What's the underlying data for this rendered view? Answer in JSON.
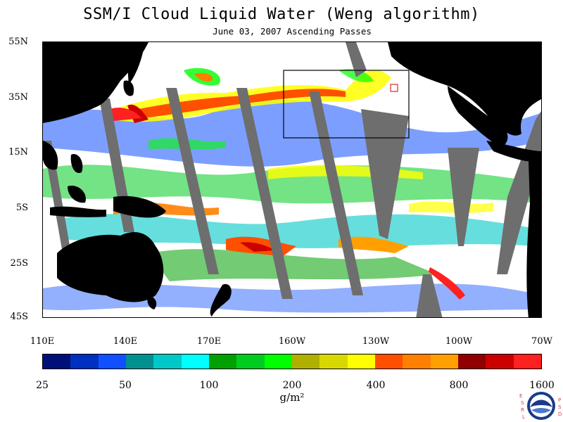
{
  "title": "SSM/I Cloud Liquid Water (Weng algorithm)",
  "subtitle": "June 03, 2007  Ascending Passes",
  "lat_labels": [
    "55N",
    "35N",
    "15N",
    "5S",
    "25S",
    "45S"
  ],
  "lon_labels": [
    "110E",
    "140E",
    "170E",
    "160W",
    "130W",
    "100W",
    "70W"
  ],
  "colorbar": {
    "colors": [
      "#00107a",
      "#0030c0",
      "#1050ff",
      "#009090",
      "#00c8c8",
      "#00ffff",
      "#00a000",
      "#00cc20",
      "#00ff00",
      "#b0b000",
      "#d8d800",
      "#ffff00",
      "#ff5000",
      "#ff8000",
      "#ffa000",
      "#900000",
      "#cc0000",
      "#ff2020"
    ],
    "labels": [
      "25",
      "50",
      "100",
      "200",
      "400",
      "800",
      "1600"
    ]
  },
  "units": "g/m²",
  "logo": {
    "name": "NOAA",
    "letters_left": [
      "E",
      "S",
      "R",
      "L"
    ],
    "letters_right": [
      "P",
      "S",
      "D"
    ]
  }
}
